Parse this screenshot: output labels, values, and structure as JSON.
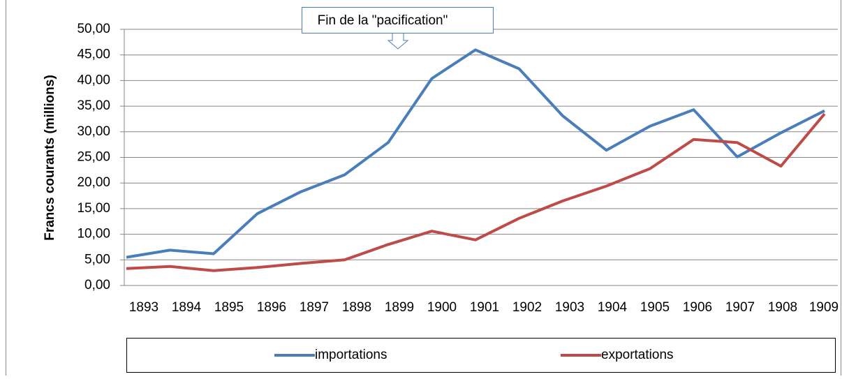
{
  "chart_data": {
    "type": "line",
    "y_label": "Francs courants (millions)",
    "annotation": "Fin de la \"pacification\"",
    "categories": [
      "1893",
      "1894",
      "1895",
      "1896",
      "1897",
      "1898",
      "1899",
      "1900",
      "1901",
      "1902",
      "1903",
      "1904",
      "1905",
      "1906",
      "1907",
      "1908",
      "1909"
    ],
    "series": [
      {
        "name": "importations",
        "color": "#4a7ebb",
        "values": [
          5.5,
          6.9,
          6.2,
          14.0,
          18.3,
          21.6,
          27.9,
          40.4,
          46.0,
          42.3,
          33.1,
          26.4,
          31.1,
          34.3,
          25.1,
          29.8,
          34.1
        ]
      },
      {
        "name": "exportations",
        "color": "#be4b48",
        "values": [
          3.3,
          3.7,
          2.9,
          3.5,
          4.3,
          5.0,
          8.0,
          10.6,
          8.9,
          13.1,
          16.5,
          19.4,
          22.8,
          28.5,
          27.9,
          23.3,
          33.5
        ]
      }
    ],
    "ylim": [
      0,
      50
    ],
    "yticks": [
      {
        "value": 0,
        "label": "0,00"
      },
      {
        "value": 5,
        "label": "5,00"
      },
      {
        "value": 10,
        "label": "10,00"
      },
      {
        "value": 15,
        "label": "15,00"
      },
      {
        "value": 20,
        "label": "20,00"
      },
      {
        "value": 25,
        "label": "25,00"
      },
      {
        "value": 30,
        "label": "30,00"
      },
      {
        "value": 35,
        "label": "35,00"
      },
      {
        "value": 40,
        "label": "40,00"
      },
      {
        "value": 45,
        "label": "45,00"
      },
      {
        "value": 50,
        "label": "50,00"
      }
    ],
    "grid": true,
    "legend": "bottom"
  }
}
